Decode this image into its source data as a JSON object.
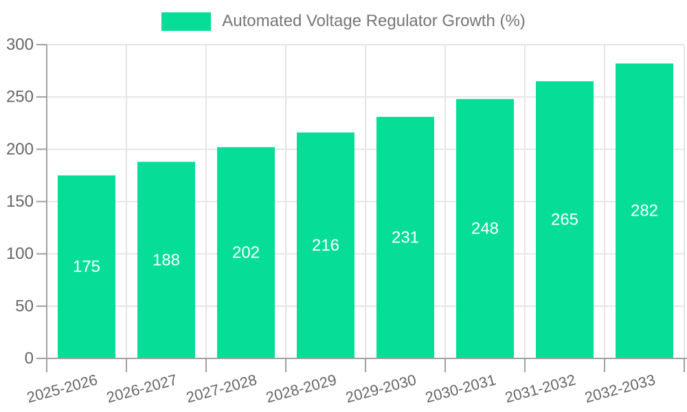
{
  "chart_data": {
    "type": "bar",
    "title": "",
    "series_name": "Automated Voltage Regulator Growth (%)",
    "categories": [
      "2025-2026",
      "2026-2027",
      "2027-2028",
      "2028-2029",
      "2029-2030",
      "2030-2031",
      "2031-2032",
      "2032-2033"
    ],
    "values": [
      175,
      188,
      202,
      216,
      231,
      248,
      265,
      282
    ],
    "xlabel": "",
    "ylabel": "",
    "ylim": [
      0,
      300
    ],
    "yticks": [
      0,
      50,
      100,
      150,
      200,
      250,
      300
    ],
    "grid": true,
    "legend_position": "top-center",
    "value_labels": "inside-center",
    "x_label_rotation_deg": -15,
    "colors": {
      "bar": "#06DE98",
      "bar_value_label": "#ffffff",
      "grid": "#e5e5e5",
      "axis": "#a0a0a0",
      "tick_label": "#666666",
      "legend_text": "#757575",
      "background": "#ffffff"
    }
  }
}
